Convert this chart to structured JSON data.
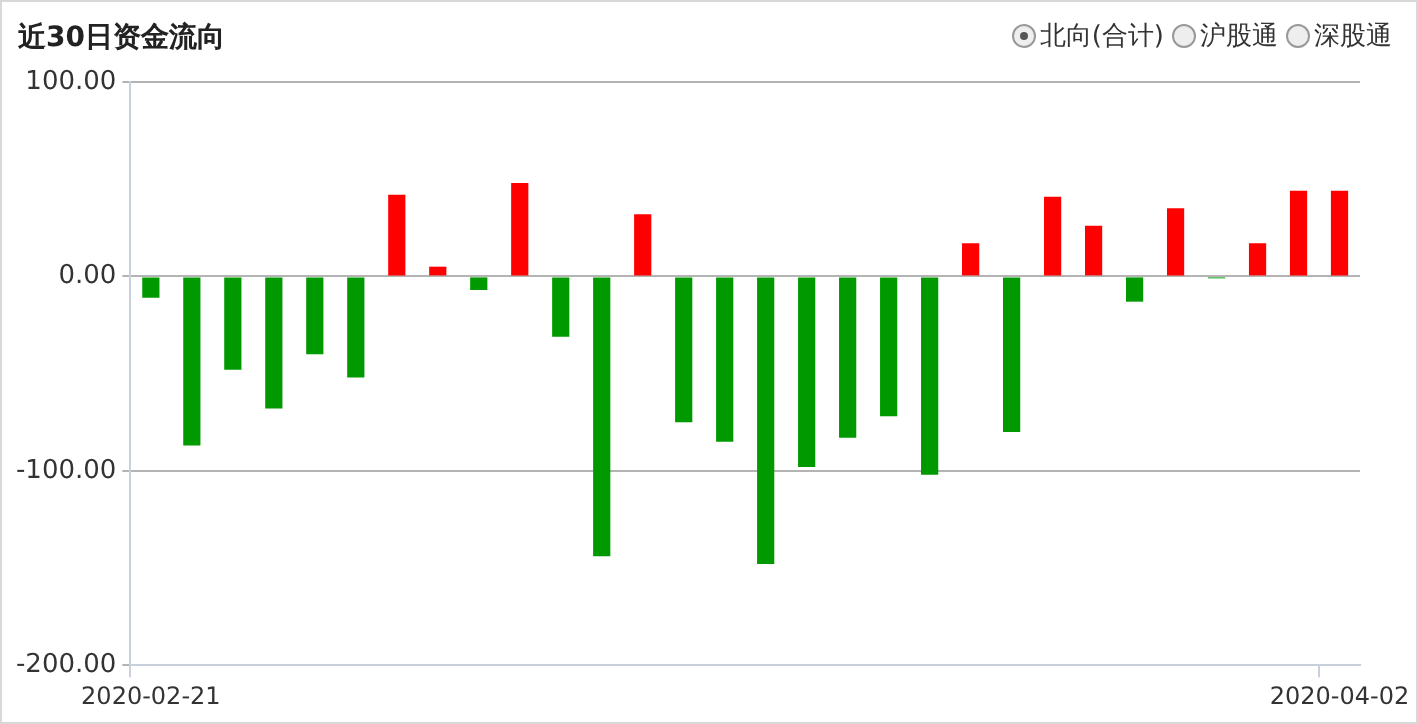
{
  "chart_data": {
    "type": "bar",
    "title": "近30日资金流向",
    "annotations": [
      "北向(合计)",
      "沪股通",
      "深股通"
    ],
    "categories": [
      "2020-02-21",
      null,
      null,
      null,
      null,
      null,
      null,
      null,
      null,
      null,
      null,
      null,
      null,
      null,
      null,
      null,
      null,
      null,
      null,
      null,
      null,
      null,
      null,
      null,
      null,
      null,
      null,
      null,
      null,
      "2020-04-02"
    ],
    "values": [
      -11,
      -87,
      -48,
      -68,
      -40,
      -52,
      42,
      5,
      -7,
      48,
      -31,
      -144,
      32,
      -75,
      -85,
      -148,
      -98,
      -83,
      -72,
      -102,
      17,
      -80,
      41,
      26,
      -13,
      35,
      -1,
      17,
      44,
      44
    ],
    "colors": [
      "#009900",
      "#009900",
      "#009900",
      "#009900",
      "#009900",
      "#009900",
      "#ff0000",
      "#ff0000",
      "#009900",
      "#ff0000",
      "#009900",
      "#009900",
      "#ff0000",
      "#009900",
      "#009900",
      "#009900",
      "#009900",
      "#009900",
      "#009900",
      "#009900",
      "#ff0000",
      "#009900",
      "#ff0000",
      "#ff0000",
      "#009900",
      "#ff0000",
      "#009900",
      "#ff0000",
      "#ff0000",
      "#ff0000"
    ],
    "ylim": [
      -200,
      100
    ],
    "yticks": [
      {
        "value": -200,
        "label": "-200.00"
      },
      {
        "value": -100,
        "label": "-100.00"
      },
      {
        "value": 0,
        "label": "0.00"
      },
      {
        "value": 100,
        "label": "100.00"
      }
    ],
    "grid": "y",
    "legend": false
  }
}
